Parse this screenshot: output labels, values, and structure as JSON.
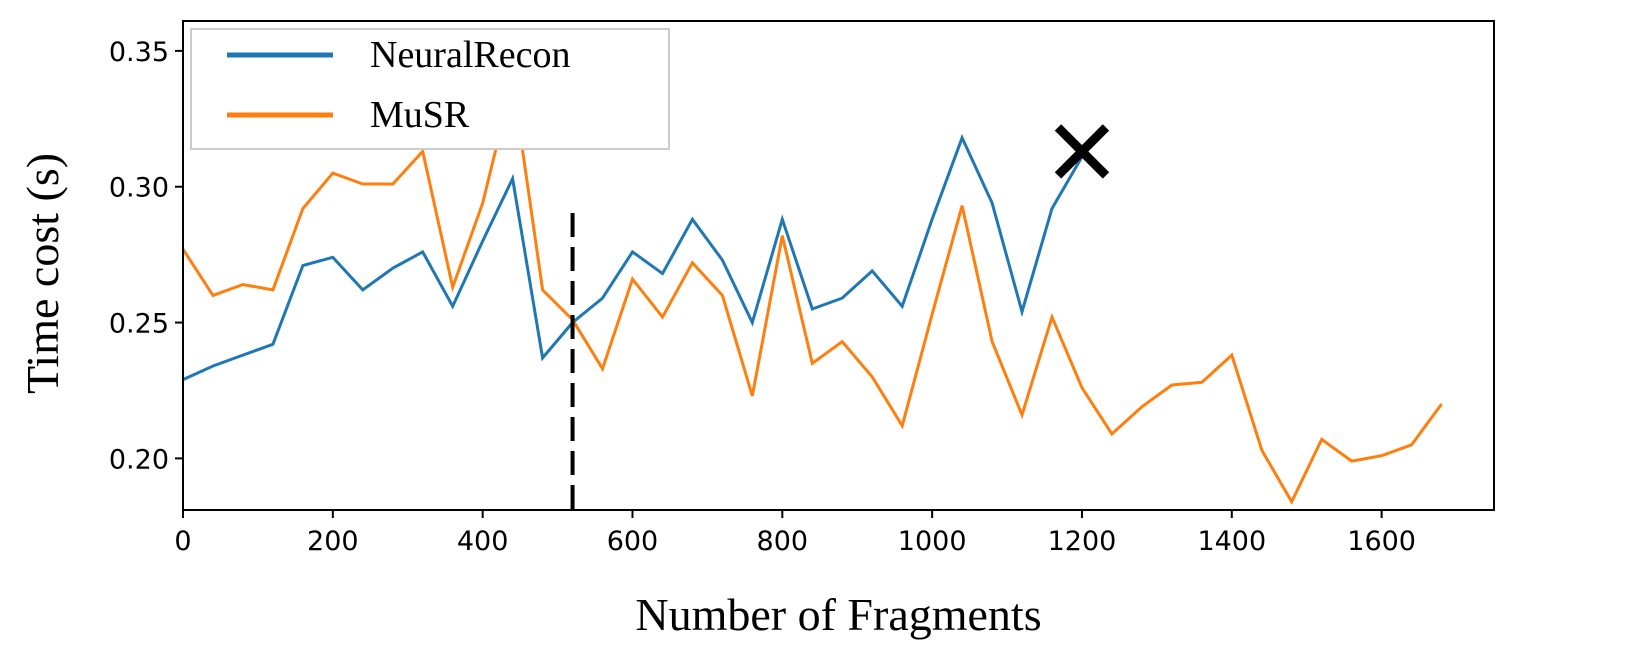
{
  "chart_data": {
    "type": "line",
    "xlabel": "Number of Fragments",
    "ylabel": "Time cost (s)",
    "xlim": [
      0,
      1750
    ],
    "ylim": [
      0.181,
      0.361
    ],
    "xticks": [
      0,
      200,
      400,
      600,
      800,
      1000,
      1200,
      1400,
      1600
    ],
    "yticks": [
      0.2,
      0.25,
      0.3,
      0.35
    ],
    "xtick_labels": [
      "0",
      "200",
      "400",
      "600",
      "800",
      "1000",
      "1200",
      "1400",
      "1600"
    ],
    "ytick_labels": [
      "0.20",
      "0.25",
      "0.30",
      "0.35"
    ],
    "grid": false,
    "legend_position": "top-left",
    "series": [
      {
        "name": "NeuralRecon",
        "color": "#1f77b4",
        "x": [
          0,
          40,
          80,
          120,
          160,
          200,
          240,
          280,
          320,
          360,
          400,
          440,
          480,
          520,
          560,
          600,
          640,
          680,
          720,
          760,
          800,
          840,
          880,
          920,
          960,
          1000,
          1040,
          1080,
          1120,
          1160,
          1200
        ],
        "y": [
          0.229,
          0.234,
          0.238,
          0.242,
          0.271,
          0.274,
          0.262,
          0.27,
          0.276,
          0.256,
          0.28,
          0.303,
          0.237,
          0.25,
          0.259,
          0.276,
          0.268,
          0.288,
          0.273,
          0.25,
          0.288,
          0.255,
          0.259,
          0.269,
          0.256,
          0.288,
          0.318,
          0.294,
          0.254,
          0.292,
          0.311
        ]
      },
      {
        "name": "MuSR",
        "color": "#ff7f0e",
        "x": [
          0,
          40,
          80,
          120,
          160,
          200,
          240,
          280,
          320,
          360,
          400,
          440,
          480,
          520,
          560,
          600,
          640,
          680,
          720,
          760,
          800,
          840,
          880,
          920,
          960,
          1000,
          1040,
          1080,
          1120,
          1160,
          1200,
          1240,
          1280,
          1320,
          1360,
          1400,
          1440,
          1480,
          1520,
          1560,
          1600,
          1640,
          1680
        ],
        "y": [
          0.277,
          0.26,
          0.264,
          0.262,
          0.292,
          0.305,
          0.301,
          0.301,
          0.313,
          0.263,
          0.294,
          0.339,
          0.262,
          0.251,
          0.233,
          0.266,
          0.252,
          0.272,
          0.26,
          0.223,
          0.282,
          0.235,
          0.243,
          0.23,
          0.212,
          0.253,
          0.293,
          0.243,
          0.216,
          0.252,
          0.226,
          0.209,
          0.219,
          0.227,
          0.228,
          0.238,
          0.203,
          0.184,
          0.207,
          0.199,
          0.201,
          0.205,
          0.22
        ]
      }
    ],
    "annotations": [
      {
        "type": "vertical-dashed-line",
        "x": 520,
        "color": "#000000"
      },
      {
        "type": "x-marker",
        "x": 1200,
        "y": 0.313,
        "color": "#000000"
      }
    ]
  }
}
